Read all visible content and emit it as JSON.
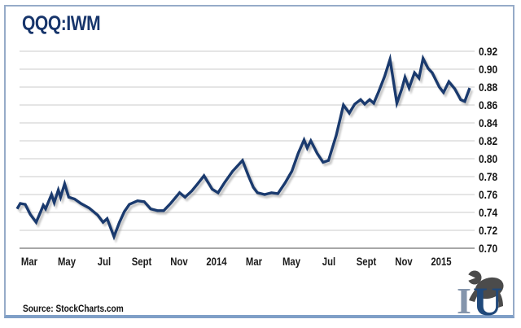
{
  "header": {
    "title": "QQQ:IWM"
  },
  "footer": {
    "source": "Source: StockCharts.com"
  },
  "logo": {
    "name": "gorilla-IU-monogram",
    "letter_i": "I",
    "letter_u": "U",
    "i_color": "#8495ac",
    "u_color": "#20497b",
    "gorilla_color": "#4b4b4b"
  },
  "chart_data": {
    "type": "line",
    "title": "QQQ:IWM",
    "xlabel": "",
    "ylabel": "",
    "x_range_note": "weekly data, approx Feb 2013 through Feb 2015",
    "ylim": [
      0.7,
      0.92
    ],
    "grid": true,
    "legend": false,
    "line_color": "#1a3a6e",
    "grid_color": "#cbcbcb",
    "axis_color": "#8a8a8a",
    "y_ticks": [
      "0.92",
      "0.90",
      "0.88",
      "0.86",
      "0.84",
      "0.82",
      "0.80",
      "0.78",
      "0.76",
      "0.74",
      "0.72",
      "0.70"
    ],
    "x_ticks": [
      {
        "label": "Mar",
        "pos": 0.02
      },
      {
        "label": "May",
        "pos": 0.103
      },
      {
        "label": "Jul",
        "pos": 0.187
      },
      {
        "label": "Sept",
        "pos": 0.27
      },
      {
        "label": "Nov",
        "pos": 0.353
      },
      {
        "label": "2014",
        "pos": 0.437
      },
      {
        "label": "Mar",
        "pos": 0.52
      },
      {
        "label": "May",
        "pos": 0.603
      },
      {
        "label": "Jul",
        "pos": 0.687
      },
      {
        "label": "Sept",
        "pos": 0.77
      },
      {
        "label": "Nov",
        "pos": 0.853
      },
      {
        "label": "2015",
        "pos": 0.937
      }
    ],
    "series": [
      {
        "name": "QQQ:IWM ratio",
        "points": [
          [
            0.0,
            0.744
          ],
          [
            0.007,
            0.75
          ],
          [
            0.018,
            0.749
          ],
          [
            0.029,
            0.738
          ],
          [
            0.042,
            0.729
          ],
          [
            0.053,
            0.742
          ],
          [
            0.058,
            0.748
          ],
          [
            0.063,
            0.744
          ],
          [
            0.076,
            0.76
          ],
          [
            0.082,
            0.751
          ],
          [
            0.091,
            0.765
          ],
          [
            0.096,
            0.757
          ],
          [
            0.105,
            0.772
          ],
          [
            0.114,
            0.757
          ],
          [
            0.127,
            0.755
          ],
          [
            0.141,
            0.75
          ],
          [
            0.159,
            0.745
          ],
          [
            0.178,
            0.737
          ],
          [
            0.19,
            0.729
          ],
          [
            0.199,
            0.733
          ],
          [
            0.214,
            0.713
          ],
          [
            0.226,
            0.729
          ],
          [
            0.237,
            0.741
          ],
          [
            0.248,
            0.749
          ],
          [
            0.266,
            0.753
          ],
          [
            0.281,
            0.752
          ],
          [
            0.295,
            0.744
          ],
          [
            0.31,
            0.742
          ],
          [
            0.324,
            0.742
          ],
          [
            0.339,
            0.75
          ],
          [
            0.359,
            0.762
          ],
          [
            0.371,
            0.757
          ],
          [
            0.386,
            0.764
          ],
          [
            0.399,
            0.772
          ],
          [
            0.413,
            0.781
          ],
          [
            0.431,
            0.766
          ],
          [
            0.444,
            0.762
          ],
          [
            0.458,
            0.773
          ],
          [
            0.476,
            0.786
          ],
          [
            0.498,
            0.798
          ],
          [
            0.511,
            0.781
          ],
          [
            0.522,
            0.768
          ],
          [
            0.531,
            0.762
          ],
          [
            0.547,
            0.76
          ],
          [
            0.562,
            0.762
          ],
          [
            0.576,
            0.761
          ],
          [
            0.592,
            0.773
          ],
          [
            0.607,
            0.786
          ],
          [
            0.621,
            0.806
          ],
          [
            0.634,
            0.821
          ],
          [
            0.641,
            0.812
          ],
          [
            0.649,
            0.82
          ],
          [
            0.663,
            0.806
          ],
          [
            0.676,
            0.796
          ],
          [
            0.688,
            0.798
          ],
          [
            0.705,
            0.826
          ],
          [
            0.721,
            0.86
          ],
          [
            0.734,
            0.851
          ],
          [
            0.746,
            0.861
          ],
          [
            0.759,
            0.866
          ],
          [
            0.768,
            0.861
          ],
          [
            0.779,
            0.866
          ],
          [
            0.788,
            0.862
          ],
          [
            0.799,
            0.875
          ],
          [
            0.812,
            0.892
          ],
          [
            0.824,
            0.911
          ],
          [
            0.839,
            0.862
          ],
          [
            0.85,
            0.878
          ],
          [
            0.857,
            0.891
          ],
          [
            0.866,
            0.879
          ],
          [
            0.878,
            0.896
          ],
          [
            0.888,
            0.89
          ],
          [
            0.897,
            0.912
          ],
          [
            0.908,
            0.901
          ],
          [
            0.917,
            0.896
          ],
          [
            0.933,
            0.88
          ],
          [
            0.942,
            0.874
          ],
          [
            0.954,
            0.886
          ],
          [
            0.967,
            0.878
          ],
          [
            0.98,
            0.866
          ],
          [
            0.989,
            0.864
          ],
          [
            1.0,
            0.879
          ]
        ]
      }
    ]
  }
}
